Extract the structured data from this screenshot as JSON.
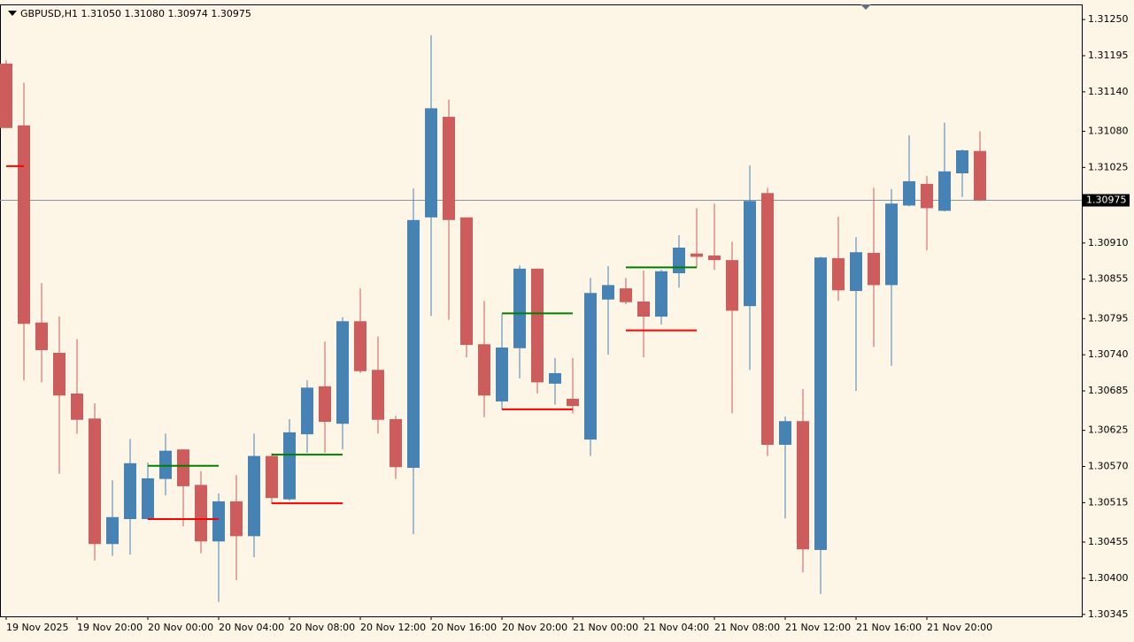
{
  "chart_data": {
    "type": "candlestick",
    "title": "GBPUSD,H1  1.31050 1.31080 1.30974 1.30975",
    "categories": [
      "19 Nov 2025",
      null,
      null,
      null,
      "19 Nov 20:00",
      null,
      null,
      null,
      "20 Nov 00:00",
      null,
      null,
      null,
      "20 Nov 04:00",
      null,
      null,
      null,
      "20 Nov 08:00",
      null,
      null,
      null,
      "20 Nov 12:00",
      null,
      null,
      null,
      "20 Nov 16:00",
      null,
      null,
      null,
      "20 Nov 20:00",
      null,
      null,
      null,
      "21 Nov 00:00",
      null,
      null,
      null,
      "21 Nov 04:00",
      null,
      null,
      null,
      "21 Nov 08:00",
      null,
      null,
      null,
      "21 Nov 12:00",
      null,
      null,
      null,
      "21 Nov 16:00",
      null,
      null,
      null,
      "21 Nov 20:00",
      null,
      null,
      null
    ],
    "open": [
      1.31183,
      1.31089,
      1.30789,
      1.30743,
      1.30681,
      1.30643,
      1.30452,
      1.3049,
      1.3049,
      1.30551,
      1.30596,
      1.30542,
      1.30456,
      1.30517,
      1.30464,
      1.30586,
      1.3052,
      1.30619,
      1.30692,
      1.30635,
      1.30791,
      1.30717,
      1.30642,
      1.30568,
      1.30949,
      1.31102,
      1.30949,
      1.30756,
      1.30669,
      1.3075,
      1.30871,
      1.30696,
      1.30673,
      1.30611,
      1.30824,
      1.30841,
      1.30821,
      1.30798,
      1.30864,
      1.30894,
      1.30891,
      1.30884,
      1.30814,
      1.30986,
      1.30603,
      1.30639,
      1.30443,
      1.30887,
      1.30837,
      1.30895,
      1.30846,
      1.30967,
      1.31,
      1.30959,
      1.31016,
      1.3105
    ],
    "high": [
      1.31188,
      1.31154,
      1.30849,
      1.30798,
      1.30764,
      1.30666,
      1.30549,
      1.30612,
      1.30576,
      1.3062,
      1.30596,
      1.30563,
      1.30529,
      1.30557,
      1.3062,
      1.3059,
      1.30642,
      1.30701,
      1.3076,
      1.30797,
      1.30841,
      1.30768,
      1.30647,
      1.30993,
      1.31226,
      1.31128,
      1.30949,
      1.30822,
      1.30802,
      1.30876,
      1.30871,
      1.30735,
      1.30735,
      1.30857,
      1.30875,
      1.30857,
      1.30868,
      1.30869,
      1.30922,
      1.30963,
      1.3097,
      1.30912,
      1.31028,
      1.30994,
      1.30646,
      1.30688,
      1.30889,
      1.3095,
      1.30919,
      1.30994,
      1.30992,
      1.31074,
      1.31012,
      1.31093,
      1.31052,
      1.3108
    ],
    "low": [
      1.31085,
      1.30701,
      1.30698,
      1.30559,
      1.3062,
      1.30427,
      1.30434,
      1.30436,
      1.30489,
      1.30526,
      1.30479,
      1.30438,
      1.30364,
      1.30397,
      1.30432,
      1.30513,
      1.30518,
      1.30591,
      1.30591,
      1.30596,
      1.30712,
      1.3062,
      1.30551,
      1.30467,
      1.30799,
      1.30793,
      1.30736,
      1.30645,
      1.30657,
      1.30704,
      1.30681,
      1.30664,
      1.30651,
      1.30586,
      1.3074,
      1.30817,
      1.30736,
      1.30786,
      1.30842,
      1.30873,
      1.30869,
      1.30651,
      1.30717,
      1.30586,
      1.30491,
      1.30409,
      1.30376,
      1.30822,
      1.30685,
      1.30752,
      1.30723,
      1.30966,
      1.30899,
      1.30958,
      1.3098,
      1.30974
    ],
    "close": [
      1.31085,
      1.30787,
      1.30747,
      1.30678,
      1.30641,
      1.30452,
      1.30493,
      1.30575,
      1.30552,
      1.30594,
      1.3054,
      1.30456,
      1.30517,
      1.30464,
      1.30586,
      1.30522,
      1.30622,
      1.3069,
      1.30638,
      1.30791,
      1.30715,
      1.30641,
      1.30569,
      1.30945,
      1.31115,
      1.30945,
      1.30755,
      1.30678,
      1.30751,
      1.30871,
      1.30698,
      1.30712,
      1.30662,
      1.30834,
      1.30846,
      1.3082,
      1.30798,
      1.30867,
      1.30903,
      1.30889,
      1.30884,
      1.30807,
      1.30974,
      1.30603,
      1.30639,
      1.30444,
      1.30888,
      1.30838,
      1.30896,
      1.30846,
      1.3097,
      1.31004,
      1.30963,
      1.31019,
      1.31051,
      1.30975
    ],
    "up_color": "#4682b4",
    "down_color": "#cd5c5c",
    "levels": [
      {
        "color": "#ff0000",
        "value": 1.31027,
        "x": [
          0,
          1
        ]
      },
      {
        "color": "#008000",
        "value": 1.30571,
        "x": [
          8,
          12
        ]
      },
      {
        "color": "#ff0000",
        "value": 1.3049,
        "x": [
          8,
          12
        ]
      },
      {
        "color": "#008000",
        "value": 1.30588,
        "x": [
          15,
          19
        ]
      },
      {
        "color": "#ff0000",
        "value": 1.30514,
        "x": [
          15,
          19
        ]
      },
      {
        "color": "#008000",
        "value": 1.30803,
        "x": [
          28,
          32
        ]
      },
      {
        "color": "#ff0000",
        "value": 1.30657,
        "x": [
          28,
          32
        ]
      },
      {
        "color": "#008000",
        "value": 1.30873,
        "x": [
          35,
          39
        ]
      },
      {
        "color": "#ff0000",
        "value": 1.30777,
        "x": [
          35,
          39
        ]
      }
    ],
    "current_price": {
      "value": 1.30975,
      "label": "1.30975"
    },
    "ylim": [
      1.30342,
      1.31273
    ],
    "yticks": [
      {
        "value": 1.3125,
        "label": "1.31250"
      },
      1.31195,
      {
        "value": 1.3114,
        "label": "1.31140"
      },
      {
        "value": 1.3108,
        "label": "1.31080"
      },
      1.31025,
      {
        "value": 1.3091,
        "label": "1.30910"
      },
      1.30855,
      1.30795,
      {
        "value": 1.3074,
        "label": "1.30740"
      },
      1.30685,
      1.30625,
      {
        "value": 1.3057,
        "label": "1.30570"
      },
      1.30515,
      1.30455,
      {
        "value": 1.304,
        "label": "1.30400"
      },
      1.30345
    ]
  }
}
